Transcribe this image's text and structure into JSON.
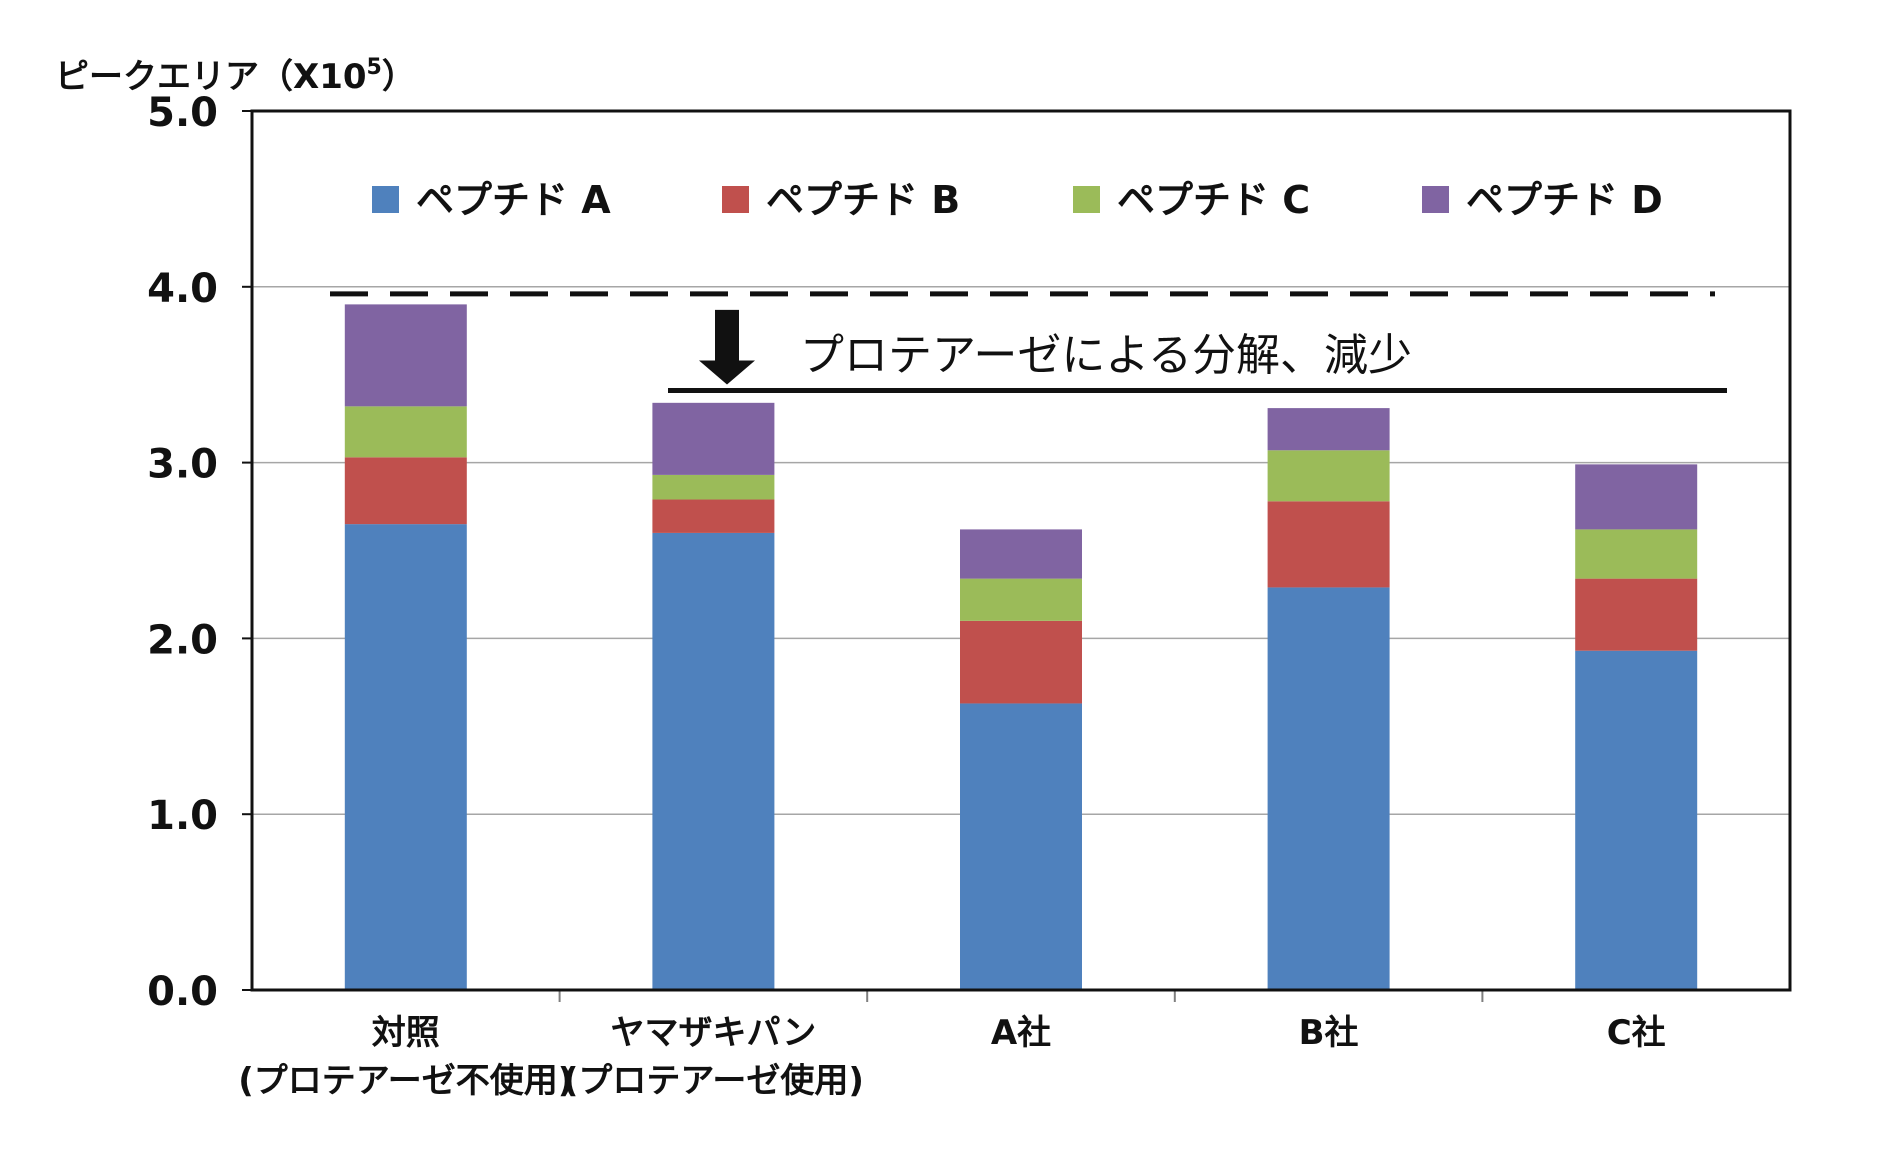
{
  "chart_data": {
    "type": "bar",
    "stacked": true,
    "ylabel": "ピークエリア（X10",
    "ylabel_exponent": "5",
    "ylabel_suffix": "）",
    "ylim": [
      0,
      5.0
    ],
    "yticks": [
      "0.0",
      "1.0",
      "2.0",
      "3.0",
      "4.0",
      "5.0"
    ],
    "grid": true,
    "legend_position": "top",
    "categories": [
      {
        "label": "対照",
        "sublabel": "(プロテアーゼ不使用)"
      },
      {
        "label": "ヤマザキパン",
        "sublabel": "(プロテアーゼ使用)"
      },
      {
        "label": "A社",
        "sublabel": ""
      },
      {
        "label": "B社",
        "sublabel": ""
      },
      {
        "label": "C社",
        "sublabel": ""
      }
    ],
    "series": [
      {
        "name": "ペプチド A",
        "color": "#4f81bd",
        "values": [
          2.65,
          2.6,
          1.63,
          2.29,
          1.93
        ]
      },
      {
        "name": "ペプチド B",
        "color": "#c0504d",
        "values": [
          0.38,
          0.19,
          0.47,
          0.49,
          0.41
        ]
      },
      {
        "name": "ペプチド C",
        "color": "#9bbb59",
        "values": [
          0.29,
          0.14,
          0.24,
          0.29,
          0.28
        ]
      },
      {
        "name": "ペプチド D",
        "color": "#8064a2",
        "values": [
          0.58,
          0.41,
          0.28,
          0.24,
          0.37
        ]
      }
    ],
    "annotations": {
      "baseline_dashed_value": 3.96,
      "reduction_line_value": 3.41,
      "reduction_text": "プロテアーゼによる分解、減少"
    }
  }
}
